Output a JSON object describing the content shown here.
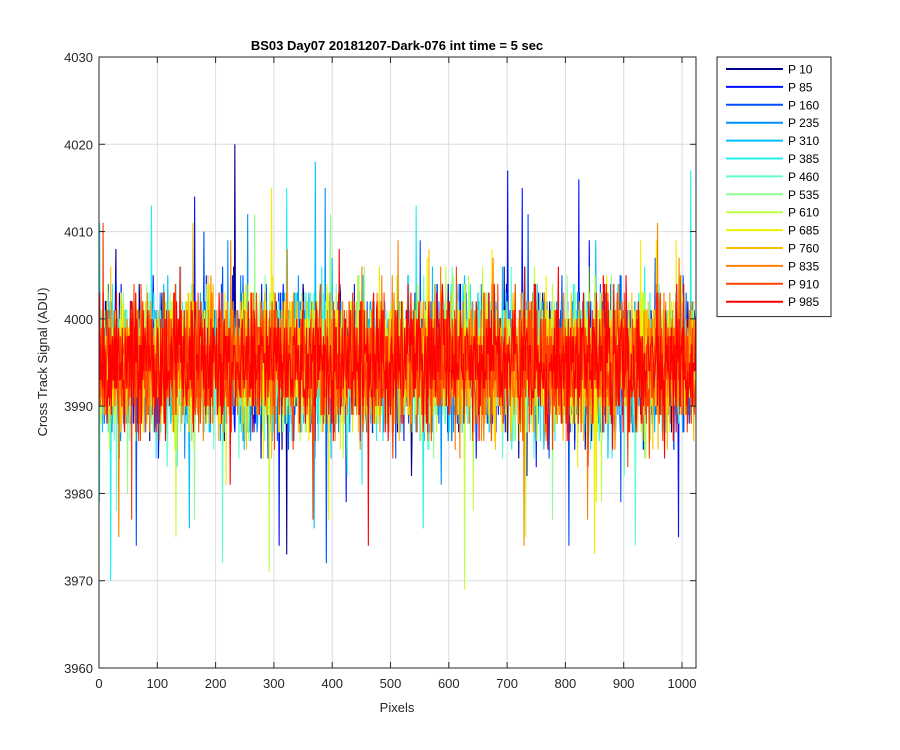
{
  "chart_data": {
    "type": "line",
    "title": "BS03 Day07 20181207-Dark-076 int time = 5 sec",
    "xlabel": "Pixels",
    "ylabel": "Cross Track Signal (ADU)",
    "xlim": [
      0,
      1024
    ],
    "ylim": [
      3960,
      4030
    ],
    "xticks": [
      0,
      100,
      200,
      300,
      400,
      500,
      600,
      700,
      800,
      900,
      1000
    ],
    "yticks": [
      3960,
      3970,
      3980,
      3990,
      4000,
      4010,
      4020,
      4030
    ],
    "grid": true,
    "legend_position": "outside-top-right",
    "noise_profile": {
      "mean": 3995,
      "typical_min": 3978,
      "typical_max": 4010,
      "extreme_min": 3965,
      "extreme_max": 4025
    },
    "series": [
      {
        "name": "P 10",
        "color": "#00008f"
      },
      {
        "name": "P 85",
        "color": "#0010ff"
      },
      {
        "name": "P 160",
        "color": "#0050ff"
      },
      {
        "name": "P 235",
        "color": "#0090ff"
      },
      {
        "name": "P 310",
        "color": "#00c0ff"
      },
      {
        "name": "P 385",
        "color": "#20f0f0"
      },
      {
        "name": "P 460",
        "color": "#60ffd0"
      },
      {
        "name": "P 535",
        "color": "#90ff90"
      },
      {
        "name": "P 610",
        "color": "#c0ff40"
      },
      {
        "name": "P 685",
        "color": "#f0f000"
      },
      {
        "name": "P 760",
        "color": "#ffc000"
      },
      {
        "name": "P 835",
        "color": "#ff8000"
      },
      {
        "name": "P 910",
        "color": "#ff4000"
      },
      {
        "name": "P 985",
        "color": "#ff0000"
      }
    ]
  }
}
